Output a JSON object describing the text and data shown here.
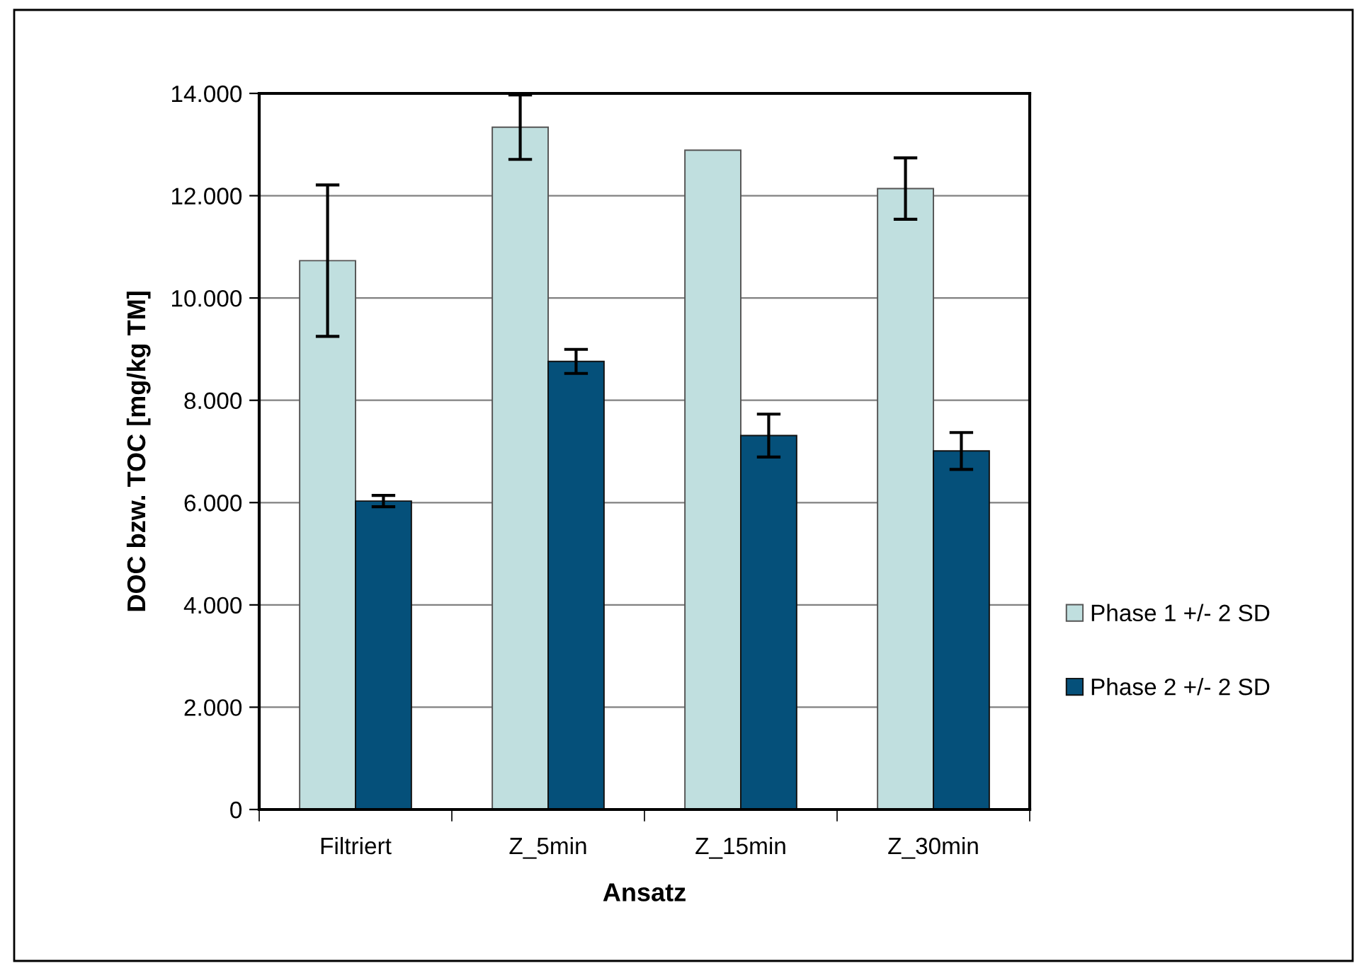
{
  "chart_data": {
    "type": "bar",
    "xlabel": "Ansatz",
    "ylabel": "DOC bzw. TOC [mg/kg TM]",
    "categories": [
      "Filtriert",
      "Z_5min",
      "Z_15min",
      "Z_30min"
    ],
    "series": [
      {
        "name": "Phase 1 +/- 2 SD",
        "color": "#c0dfdf",
        "values": [
          10730,
          13340,
          12890,
          12140
        ],
        "errors": [
          1480,
          630,
          null,
          600
        ]
      },
      {
        "name": "Phase 2 +/- 2 SD",
        "color": "#05507a",
        "values": [
          6030,
          8760,
          7310,
          7010
        ],
        "errors": [
          110,
          235,
          420,
          360
        ]
      }
    ],
    "ylim": [
      0,
      14000
    ],
    "yticks": [
      0,
      {
        "value": 2000,
        "label": "2.000"
      },
      {
        "value": 4000,
        "label": "4.000"
      },
      {
        "value": 6000,
        "label": "6.000"
      },
      {
        "value": 8000,
        "label": "8.000"
      },
      {
        "value": 10000,
        "label": "10.000"
      },
      {
        "value": 12000,
        "label": "12.000"
      },
      {
        "value": 14000,
        "label": "14.000"
      }
    ],
    "grid": "y",
    "legend": "right"
  }
}
